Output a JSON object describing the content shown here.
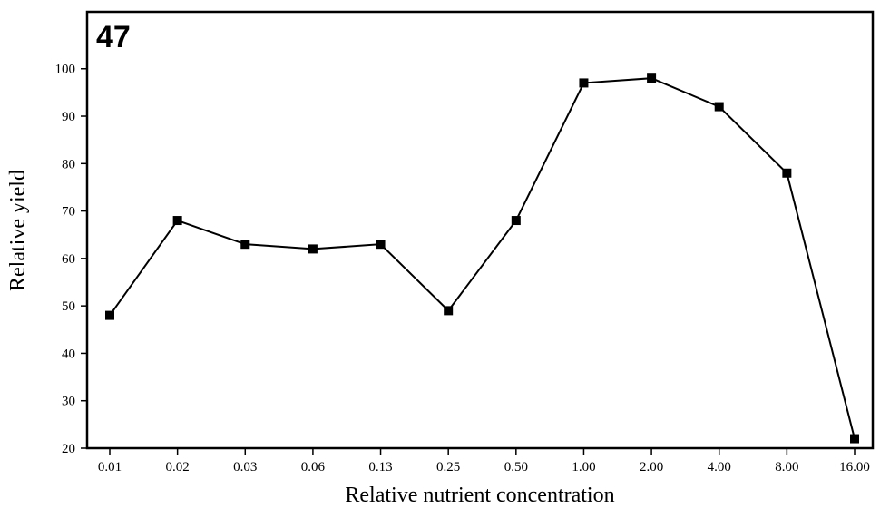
{
  "chart_data": {
    "type": "line",
    "panel_label": "47",
    "xlabel": "Relative nutrient concentration",
    "ylabel": "Relative yield",
    "categories": [
      "0.01",
      "0.02",
      "0.03",
      "0.06",
      "0.13",
      "0.25",
      "0.50",
      "1.00",
      "2.00",
      "4.00",
      "8.00",
      "16.00"
    ],
    "values": [
      48,
      68,
      63,
      62,
      63,
      49,
      68,
      97,
      98,
      92,
      78,
      22
    ],
    "ylim": [
      20,
      112
    ],
    "yticks": [
      20,
      30,
      40,
      50,
      60,
      70,
      80,
      90,
      100
    ],
    "grid": false,
    "legend": "none",
    "colors": {
      "line": "#000000",
      "marker": "#000000",
      "axis": "#000000"
    }
  }
}
